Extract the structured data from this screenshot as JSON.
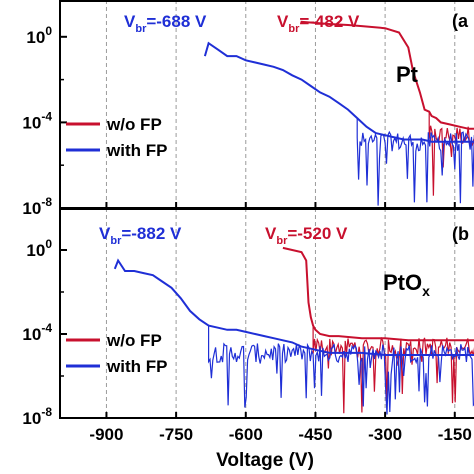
{
  "xlabel": "Voltage (V)",
  "colors": {
    "wo_fp": "#c8102e",
    "with_fp": "#1f2fd6",
    "grid": "#9a9a9a",
    "axis": "#000000"
  },
  "chart_data": [
    {
      "type": "line",
      "panel_label": "(a",
      "material_label": "Pt",
      "material_subscript": "",
      "xlim": [
        -1000,
        -100
      ],
      "ylim_exponent": [
        -8,
        2
      ],
      "y_scale": "log",
      "grid": "vertical dashed",
      "legend_placement": "bottom-left",
      "x_ticks": [],
      "y_ticks": [
        {
          "base": "10",
          "exp": "0",
          "value": 0
        },
        {
          "base": "10",
          "exp": "-4",
          "value": -4
        },
        {
          "base": "10",
          "exp": "-8",
          "value": -8
        }
      ],
      "annotations": [
        {
          "prefix": "V",
          "sub": "br",
          "text": "=-688 V",
          "series": "with FP",
          "voltage": -688
        },
        {
          "prefix": "V",
          "sub": "br",
          "text": "=-482 V",
          "series": "w/o FP",
          "voltage": -482
        }
      ],
      "series": [
        {
          "name": "w/o FP",
          "color": "#c8102e",
          "x": [
            -482,
            -420,
            -380,
            -350,
            -300,
            -270,
            -250,
            -240,
            -225,
            -215,
            -205,
            -200,
            -190,
            -180,
            -160,
            -140,
            -120,
            -100
          ],
          "log_y": [
            0.7,
            0.6,
            0.55,
            0.5,
            0.4,
            0.2,
            -0.5,
            -1.6,
            -2.6,
            -3.4,
            -3.5,
            -3.7,
            -3.8,
            -4.0,
            -4.1,
            -4.2,
            -4.3,
            -4.3
          ]
        },
        {
          "name": "with FP",
          "color": "#1f2fd6",
          "x": [
            -688,
            -680,
            -660,
            -640,
            -620,
            -600,
            -560,
            -540,
            -520,
            -500,
            -480,
            -460,
            -440,
            -420,
            -400,
            -380,
            -360,
            -340,
            -320,
            -300,
            -280,
            -260,
            -240,
            -220,
            -200,
            -180,
            -160,
            -140,
            -120,
            -100
          ],
          "log_y": [
            -0.9,
            -0.3,
            -0.6,
            -0.9,
            -0.9,
            -1.1,
            -1.3,
            -1.4,
            -1.55,
            -1.8,
            -2.0,
            -2.3,
            -2.6,
            -2.8,
            -3.1,
            -3.4,
            -3.8,
            -4.2,
            -4.5,
            -4.6,
            -4.7,
            -4.8,
            -4.8,
            -4.8,
            -4.9,
            -4.9,
            -4.9,
            -4.9,
            -4.9,
            -4.9
          ]
        }
      ]
    },
    {
      "type": "line",
      "panel_label": "(b",
      "material_label": "PtO",
      "material_subscript": "x",
      "xlim": [
        -1000,
        -100
      ],
      "ylim_exponent": [
        -8,
        2
      ],
      "y_scale": "log",
      "grid": "vertical dashed",
      "legend_placement": "bottom-left",
      "x_ticks": [
        "-900",
        "-750",
        "-600",
        "-450",
        "-300",
        "-150"
      ],
      "y_ticks": [
        {
          "base": "10",
          "exp": "0",
          "value": 0
        },
        {
          "base": "10",
          "exp": "-4",
          "value": -4
        },
        {
          "base": "10",
          "exp": "-8",
          "value": -8
        }
      ],
      "annotations": [
        {
          "prefix": "V",
          "sub": "br",
          "text": "=-882 V",
          "series": "with FP",
          "voltage": -882
        },
        {
          "prefix": "V",
          "sub": "br",
          "text": "=-520 V",
          "series": "w/o FP",
          "voltage": -520
        }
      ],
      "series": [
        {
          "name": "w/o FP",
          "color": "#c8102e",
          "x": [
            -520,
            -500,
            -480,
            -470,
            -465,
            -460,
            -455,
            -450,
            -440,
            -420,
            -400,
            -350,
            -300,
            -250,
            -200,
            -150,
            -100
          ],
          "log_y": [
            0.1,
            0.0,
            -0.1,
            -0.5,
            -2.5,
            -3.2,
            -3.6,
            -3.8,
            -4.0,
            -4.1,
            -4.1,
            -4.2,
            -4.2,
            -4.3,
            -4.3,
            -4.3,
            -4.3
          ]
        },
        {
          "name": "with FP",
          "color": "#1f2fd6",
          "x": [
            -882,
            -875,
            -860,
            -840,
            -820,
            -800,
            -780,
            -760,
            -740,
            -720,
            -700,
            -680,
            -660,
            -640,
            -620,
            -600,
            -580,
            -560,
            -540,
            -520,
            -500,
            -480,
            -460,
            -440,
            -420,
            -400,
            -350,
            -300,
            -250,
            -200,
            -150,
            -100
          ],
          "log_y": [
            -0.9,
            -0.5,
            -1.0,
            -1.0,
            -1.1,
            -1.2,
            -1.5,
            -1.8,
            -2.3,
            -2.9,
            -3.3,
            -3.6,
            -3.7,
            -3.8,
            -3.8,
            -3.9,
            -4.0,
            -4.1,
            -4.2,
            -4.3,
            -4.4,
            -4.6,
            -4.7,
            -4.8,
            -4.9,
            -4.9,
            -4.9,
            -5.0,
            -5.0,
            -5.0,
            -5.0,
            -5.0
          ]
        }
      ]
    }
  ]
}
